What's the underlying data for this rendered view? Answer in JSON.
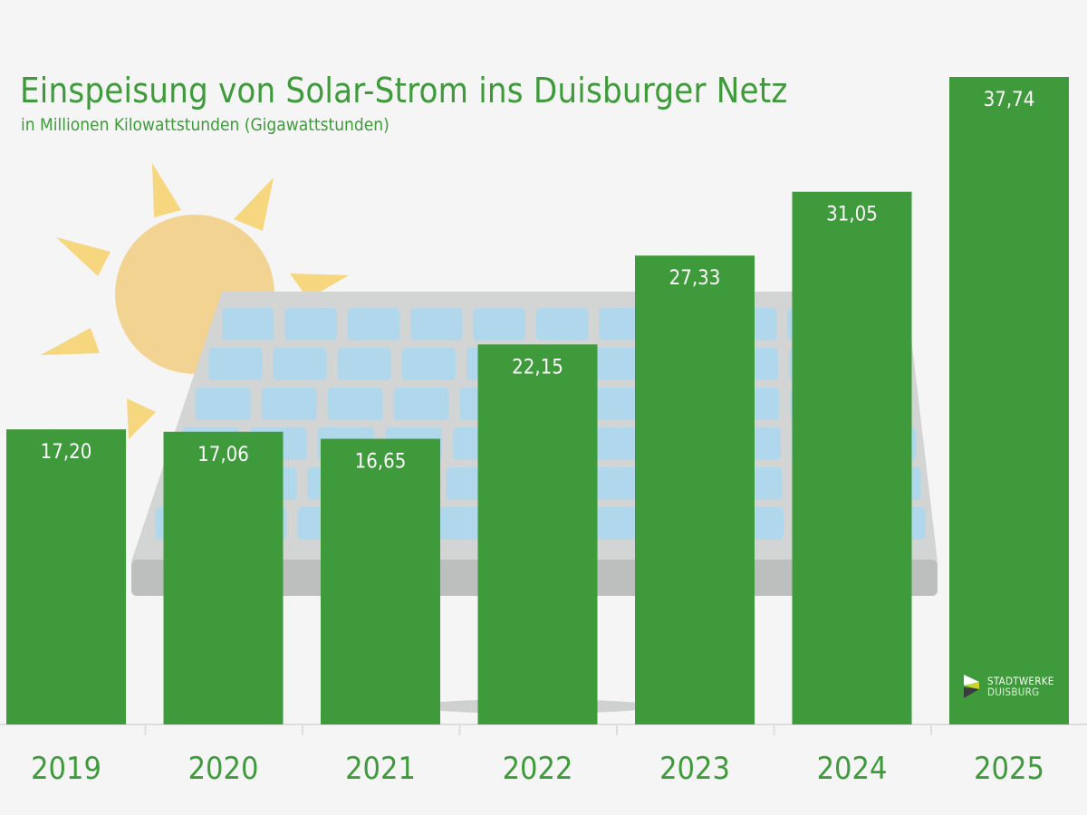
{
  "chart_data": {
    "type": "bar",
    "title": "Einspeisung von Solar-Strom ins Duisburger Netz",
    "subtitle": "in Millionen Kilowattstunden (Gigawattstunden)",
    "categories": [
      "2019",
      "2020",
      "2021",
      "2022",
      "2023",
      "2024",
      "2025"
    ],
    "values": [
      17.2,
      17.06,
      16.65,
      22.15,
      27.33,
      31.05,
      37.74
    ],
    "value_labels": [
      "17,20",
      "17,06",
      "16,65",
      "22,15",
      "27,33",
      "31,05",
      "37,74"
    ],
    "xlabel": "",
    "ylabel": "",
    "ylim": [
      0,
      37.74
    ],
    "grid": false,
    "legend": "none",
    "colors": {
      "bar": "#3f9a3c",
      "text": "#3f9a3c",
      "background": "#f4f5f4"
    }
  },
  "logo": {
    "line1": "STADTWERKE",
    "line2": "DUISBURG"
  }
}
